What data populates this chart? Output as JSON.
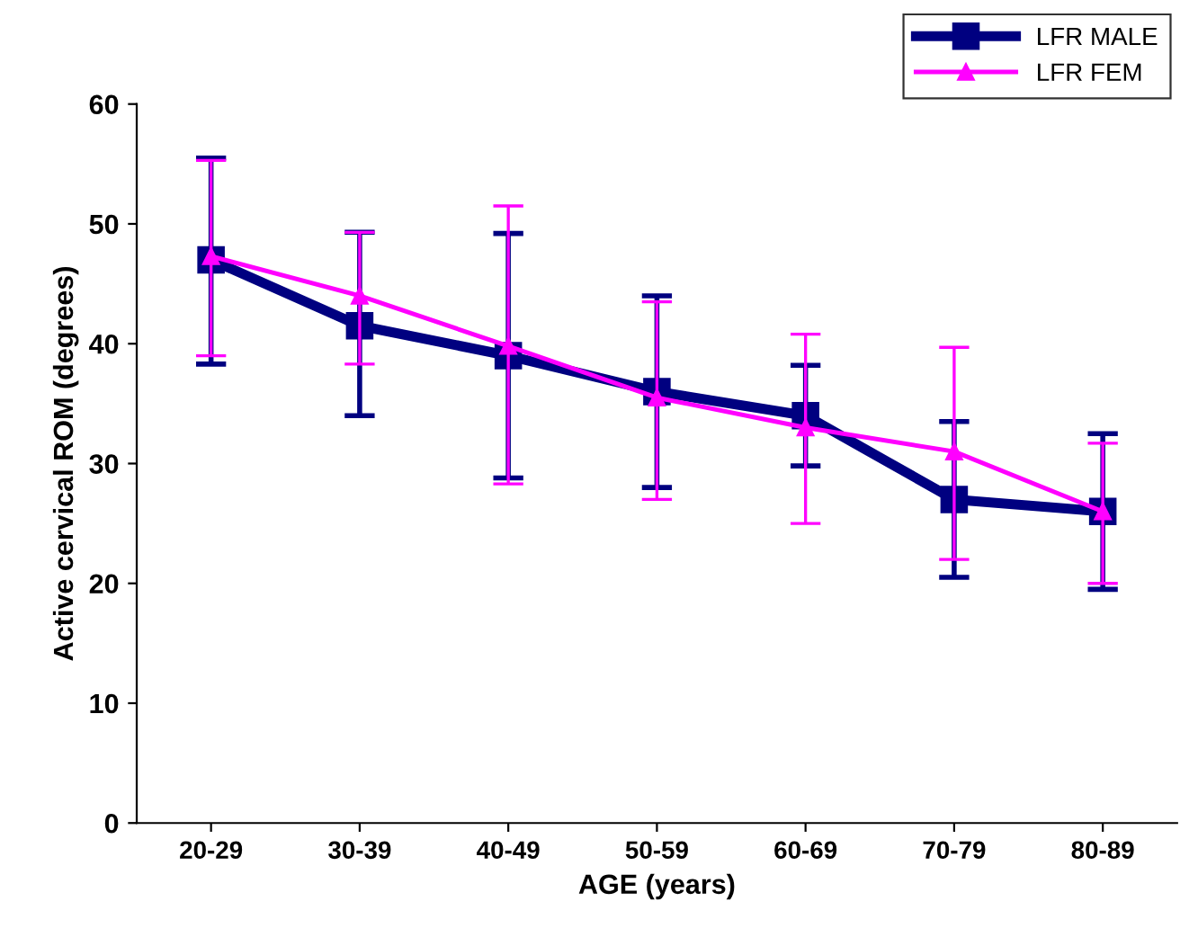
{
  "chart_data": {
    "type": "line",
    "xlabel": "AGE (years)",
    "ylabel": "Active cervical ROM (degrees)",
    "categories": [
      "20-29",
      "30-39",
      "40-49",
      "50-59",
      "60-69",
      "70-79",
      "80-89"
    ],
    "series": [
      {
        "name": "LFR MALE",
        "color": "#000080",
        "marker": "square",
        "values": [
          47,
          41.5,
          39,
          36,
          34,
          27,
          26
        ],
        "errors": [
          [
            38.3,
            55.5
          ],
          [
            34,
            49.3
          ],
          [
            28.8,
            49.2
          ],
          [
            28,
            44
          ],
          [
            29.8,
            38.2
          ],
          [
            20.5,
            33.5
          ],
          [
            19.5,
            32.5
          ]
        ]
      },
      {
        "name": "LFR FEM",
        "color": "#ff00ff",
        "marker": "triangle",
        "values": [
          47.3,
          44,
          39.8,
          35.5,
          33,
          31,
          26
        ],
        "errors": [
          [
            39,
            55.3
          ],
          [
            38.3,
            49.3
          ],
          [
            28.3,
            51.5
          ],
          [
            27,
            43.5
          ],
          [
            25,
            40.8
          ],
          [
            22,
            39.7
          ],
          [
            20,
            31.7
          ]
        ]
      }
    ],
    "ylim": [
      0,
      60
    ],
    "yticks": [
      0,
      10,
      20,
      30,
      40,
      50,
      60
    ],
    "grid": false,
    "legend": "top right",
    "line_style": "solid"
  }
}
